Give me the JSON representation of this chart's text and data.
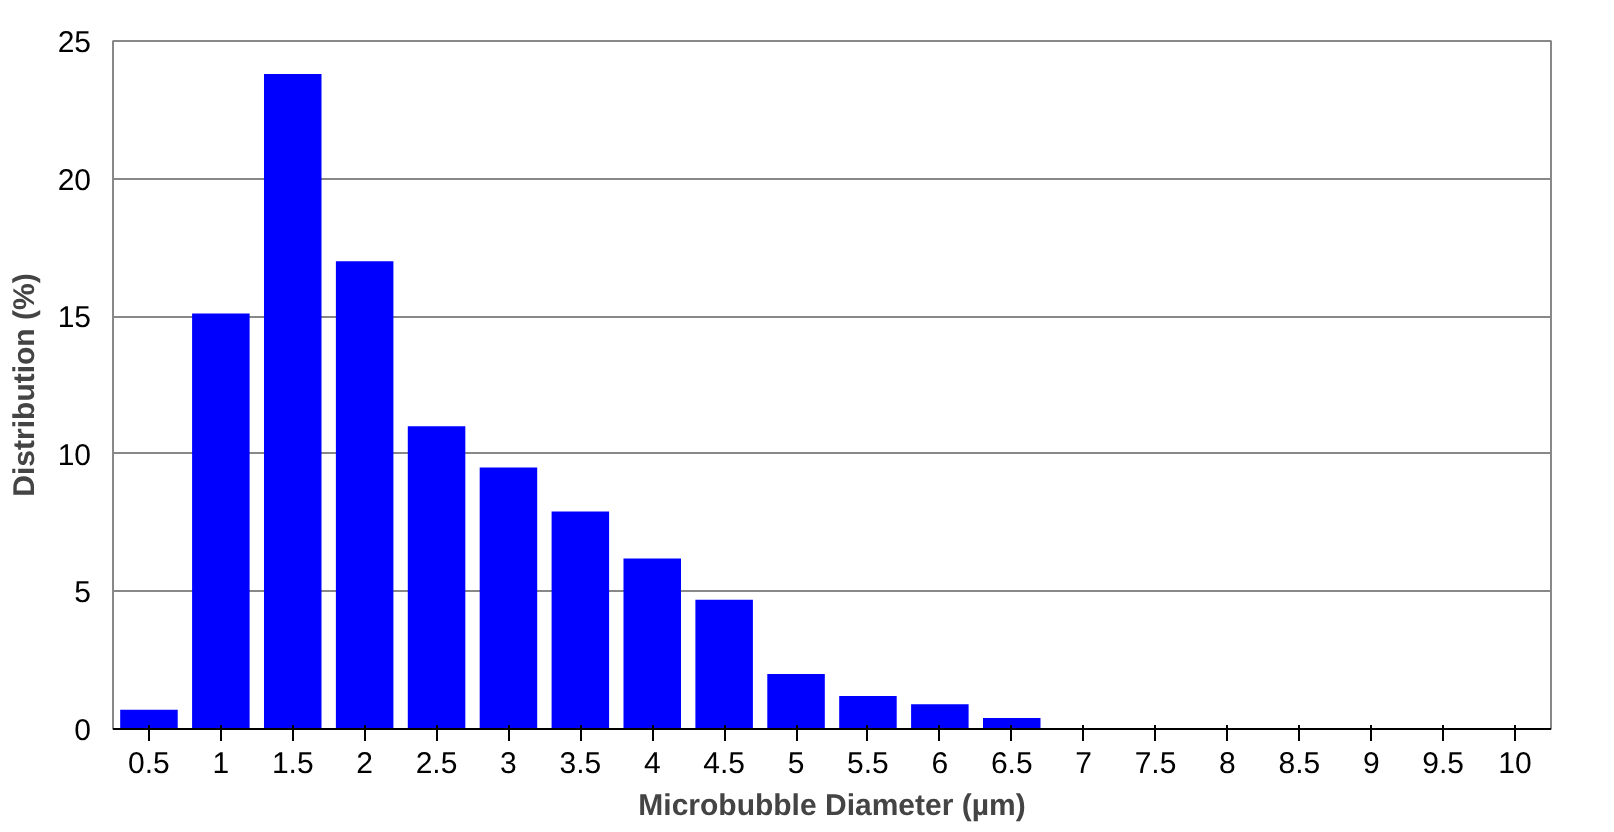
{
  "chart_data": {
    "type": "bar",
    "xlabel": "Microbubble Diameter (µm)",
    "ylabel": "Distribution (%)",
    "categories": [
      "0.5",
      "1",
      "1.5",
      "2",
      "2.5",
      "3",
      "3.5",
      "4",
      "4.5",
      "5",
      "5.5",
      "6",
      "6.5",
      "7",
      "7.5",
      "8",
      "8.5",
      "9",
      "9.5",
      "10"
    ],
    "values": [
      0.7,
      15.1,
      23.8,
      17.0,
      11.0,
      9.5,
      7.9,
      6.2,
      4.7,
      2.0,
      1.2,
      0.9,
      0.4,
      0,
      0,
      0,
      0,
      0,
      0,
      0
    ],
    "color": "#0000ff",
    "ylim": [
      0,
      25
    ],
    "yticks": [
      0,
      5,
      10,
      15,
      20,
      25
    ],
    "grid": "y"
  }
}
